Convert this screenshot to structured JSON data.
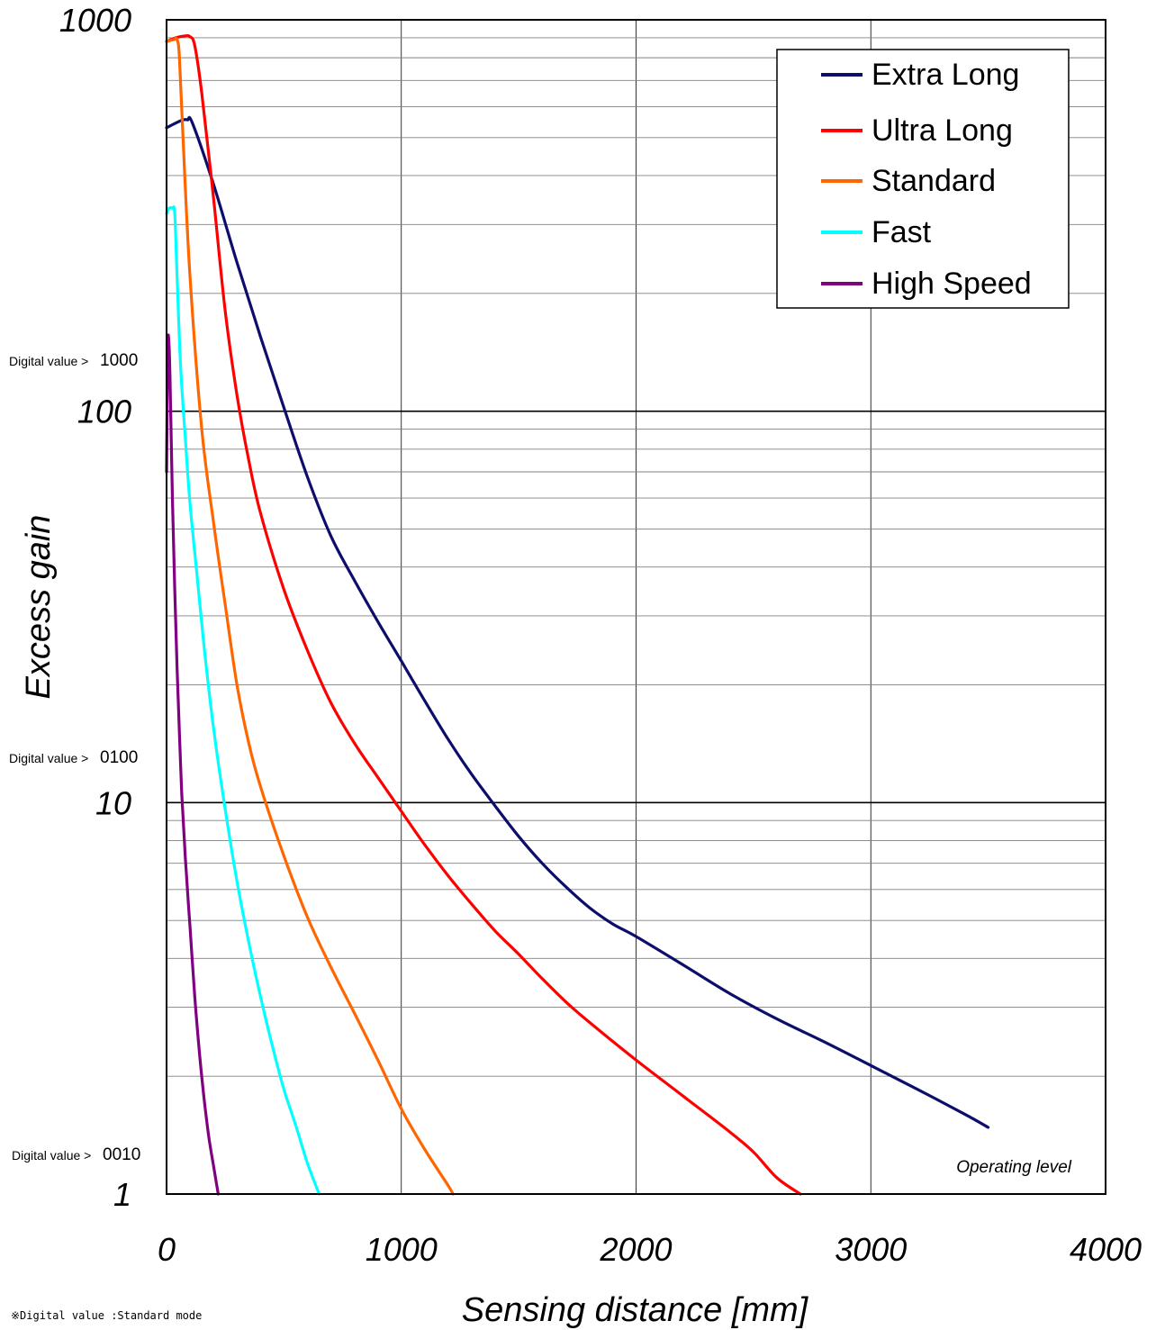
{
  "chart_data": {
    "type": "line",
    "xlabel": "Sensing distance  [mm]",
    "ylabel": "Excess gain",
    "x_scale": "linear",
    "y_scale": "log",
    "xlim": [
      0,
      4000
    ],
    "ylim": [
      1,
      1000
    ],
    "x_ticks": [
      "0",
      "1000",
      "2000",
      "3000",
      "4000"
    ],
    "y_ticks": [
      "1",
      "10",
      "100",
      "1000"
    ],
    "grid": true,
    "legend_position": "top-right",
    "series": [
      {
        "name": "Extra Long",
        "color": "#0d0d6b",
        "points": [
          [
            0,
            530
          ],
          [
            40,
            545
          ],
          [
            70,
            555
          ],
          [
            90,
            555
          ],
          [
            110,
            545
          ],
          [
            200,
            380
          ],
          [
            300,
            240
          ],
          [
            400,
            155
          ],
          [
            500,
            102
          ],
          [
            600,
            68
          ],
          [
            700,
            48
          ],
          [
            800,
            37
          ],
          [
            900,
            29
          ],
          [
            1000,
            23
          ],
          [
            1100,
            18.2
          ],
          [
            1200,
            14.5
          ],
          [
            1300,
            11.8
          ],
          [
            1400,
            9.8
          ],
          [
            1500,
            8.2
          ],
          [
            1600,
            7.0
          ],
          [
            1700,
            6.1
          ],
          [
            1800,
            5.4
          ],
          [
            1900,
            4.9
          ],
          [
            2000,
            4.55
          ],
          [
            2200,
            3.85
          ],
          [
            2400,
            3.25
          ],
          [
            2600,
            2.8
          ],
          [
            2800,
            2.45
          ],
          [
            3000,
            2.13
          ],
          [
            3200,
            1.85
          ],
          [
            3400,
            1.6
          ],
          [
            3500,
            1.48
          ]
        ]
      },
      {
        "name": "Ultra Long",
        "color": "#ff0000",
        "points": [
          [
            0,
            880
          ],
          [
            40,
            900
          ],
          [
            80,
            910
          ],
          [
            100,
            905
          ],
          [
            120,
            860
          ],
          [
            150,
            650
          ],
          [
            200,
            350
          ],
          [
            250,
            180
          ],
          [
            300,
            110
          ],
          [
            350,
            75
          ],
          [
            400,
            55
          ],
          [
            500,
            35
          ],
          [
            600,
            24.5
          ],
          [
            700,
            18
          ],
          [
            800,
            14.2
          ],
          [
            900,
            11.6
          ],
          [
            1000,
            9.5
          ],
          [
            1100,
            7.8
          ],
          [
            1200,
            6.5
          ],
          [
            1300,
            5.5
          ],
          [
            1400,
            4.7
          ],
          [
            1500,
            4.1
          ],
          [
            1600,
            3.55
          ],
          [
            1700,
            3.1
          ],
          [
            1800,
            2.75
          ],
          [
            2000,
            2.2
          ],
          [
            2200,
            1.78
          ],
          [
            2400,
            1.44
          ],
          [
            2500,
            1.28
          ],
          [
            2600,
            1.1
          ],
          [
            2700,
            1.0
          ]
        ]
      },
      {
        "name": "Standard",
        "color": "#ff6600",
        "points": [
          [
            0,
            880
          ],
          [
            30,
            890
          ],
          [
            45,
            890
          ],
          [
            55,
            800
          ],
          [
            70,
            500
          ],
          [
            100,
            220
          ],
          [
            150,
            90
          ],
          [
            200,
            52
          ],
          [
            250,
            32
          ],
          [
            300,
            20
          ],
          [
            350,
            14.2
          ],
          [
            400,
            11
          ],
          [
            500,
            7.3
          ],
          [
            600,
            5.1
          ],
          [
            700,
            3.8
          ],
          [
            800,
            2.9
          ],
          [
            900,
            2.2
          ],
          [
            1000,
            1.65
          ],
          [
            1100,
            1.3
          ],
          [
            1200,
            1.05
          ],
          [
            1220,
            1.0
          ]
        ]
      },
      {
        "name": "Fast",
        "color": "#00ffff",
        "points": [
          [
            0,
            320
          ],
          [
            10,
            330
          ],
          [
            25,
            330
          ],
          [
            35,
            320
          ],
          [
            45,
            220
          ],
          [
            60,
            130
          ],
          [
            80,
            85
          ],
          [
            100,
            58
          ],
          [
            130,
            38
          ],
          [
            160,
            25
          ],
          [
            200,
            15.5
          ],
          [
            250,
            9.6
          ],
          [
            300,
            6.3
          ],
          [
            350,
            4.4
          ],
          [
            400,
            3.2
          ],
          [
            450,
            2.4
          ],
          [
            500,
            1.85
          ],
          [
            550,
            1.5
          ],
          [
            600,
            1.2
          ],
          [
            650,
            1.0
          ]
        ]
      },
      {
        "name": "High Speed",
        "color": "#800080",
        "points": [
          [
            0,
            70
          ],
          [
            5,
            145
          ],
          [
            10,
            150
          ],
          [
            15,
            120
          ],
          [
            25,
            60
          ],
          [
            35,
            35
          ],
          [
            45,
            22
          ],
          [
            55,
            15
          ],
          [
            65,
            10.5
          ],
          [
            80,
            7.2
          ],
          [
            100,
            4.8
          ],
          [
            120,
            3.2
          ],
          [
            140,
            2.3
          ],
          [
            160,
            1.75
          ],
          [
            180,
            1.4
          ],
          [
            200,
            1.18
          ],
          [
            220,
            1.0
          ]
        ]
      }
    ],
    "digital_value_labels": [
      {
        "prefix": "Digital value >",
        "value": "1000"
      },
      {
        "prefix": "Digital value >",
        "value": "0100"
      },
      {
        "prefix": "Digital value >",
        "value": "0010"
      }
    ],
    "annotation": "Operating level",
    "footnote": "※Digital value :Standard mode"
  }
}
